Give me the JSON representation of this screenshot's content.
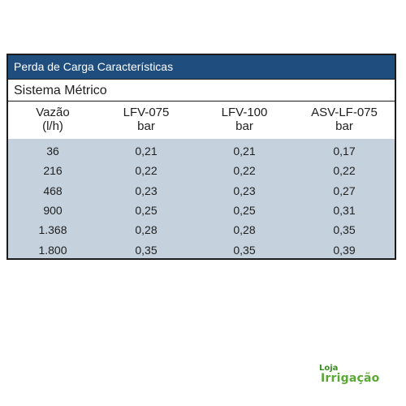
{
  "table": {
    "title": "Perda de Carga Características",
    "subtitle": "Sistema Métrico",
    "headers": [
      {
        "line1": "Vazão",
        "line2": "(l/h)"
      },
      {
        "line1": "LFV-075",
        "line2": "bar"
      },
      {
        "line1": "LFV-100",
        "line2": "bar"
      },
      {
        "line1": "ASV-LF-075",
        "line2": "bar"
      }
    ],
    "rows": [
      [
        "36",
        "0,21",
        "0,21",
        "0,17"
      ],
      [
        "216",
        "0,22",
        "0,22",
        "0,22"
      ],
      [
        "468",
        "0,23",
        "0,23",
        "0,27"
      ],
      [
        "900",
        "0,25",
        "0,25",
        "0,31"
      ],
      [
        "1.368",
        "0,28",
        "0,28",
        "0,35"
      ],
      [
        "1.800",
        "0,35",
        "0,35",
        "0,39"
      ]
    ]
  },
  "brand": {
    "line1": "Loja",
    "line2": "Irrigação",
    "color": "#4a9a2c"
  },
  "colors": {
    "header_bg": "#1f4d7d",
    "body_bg": "#c5d2de"
  }
}
